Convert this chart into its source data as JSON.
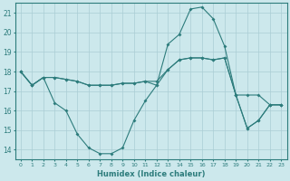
{
  "xlabel": "Humidex (Indice chaleur)",
  "bg_color": "#cce8ec",
  "grid_color": "#aacdd4",
  "line_color": "#2d7c7c",
  "xlim": [
    -0.5,
    23.5
  ],
  "ylim": [
    13.5,
    21.5
  ],
  "yticks": [
    14,
    15,
    16,
    17,
    18,
    19,
    20,
    21
  ],
  "xticks": [
    0,
    1,
    2,
    3,
    4,
    5,
    6,
    7,
    8,
    9,
    10,
    11,
    12,
    13,
    14,
    15,
    16,
    17,
    18,
    19,
    20,
    21,
    22,
    23
  ],
  "line1_x": [
    0,
    1,
    2,
    3,
    4,
    5,
    6,
    7,
    8,
    9,
    10,
    11,
    12,
    13,
    14,
    15,
    16,
    17,
    18,
    19,
    20,
    21,
    22,
    23
  ],
  "line1_y": [
    18.0,
    17.3,
    17.7,
    17.7,
    17.6,
    17.5,
    17.3,
    17.3,
    17.3,
    17.4,
    17.4,
    17.5,
    17.5,
    18.1,
    18.6,
    18.7,
    18.7,
    18.6,
    18.7,
    16.8,
    16.8,
    16.8,
    16.3,
    16.3
  ],
  "line2_x": [
    0,
    1,
    2,
    3,
    4,
    5,
    6,
    7,
    8,
    9,
    10,
    11,
    12,
    13,
    14,
    15,
    16,
    17,
    18,
    19,
    20,
    21,
    22,
    23
  ],
  "line2_y": [
    18.0,
    17.3,
    17.7,
    16.4,
    16.0,
    14.8,
    14.1,
    13.8,
    13.8,
    14.1,
    15.5,
    16.5,
    17.3,
    19.4,
    19.9,
    21.2,
    21.3,
    20.7,
    19.3,
    16.8,
    15.1,
    15.5,
    16.3,
    16.3
  ],
  "line3_x": [
    0,
    1,
    2,
    3,
    4,
    5,
    6,
    7,
    8,
    9,
    10,
    11,
    12,
    13,
    14,
    15,
    16,
    17,
    18,
    19,
    20,
    21,
    22,
    23
  ],
  "line3_y": [
    18.0,
    17.3,
    17.7,
    17.7,
    17.6,
    17.5,
    17.3,
    17.3,
    17.3,
    17.4,
    17.4,
    17.5,
    17.3,
    18.1,
    18.6,
    18.7,
    18.7,
    18.6,
    18.7,
    16.8,
    15.1,
    15.5,
    16.3,
    16.3
  ]
}
